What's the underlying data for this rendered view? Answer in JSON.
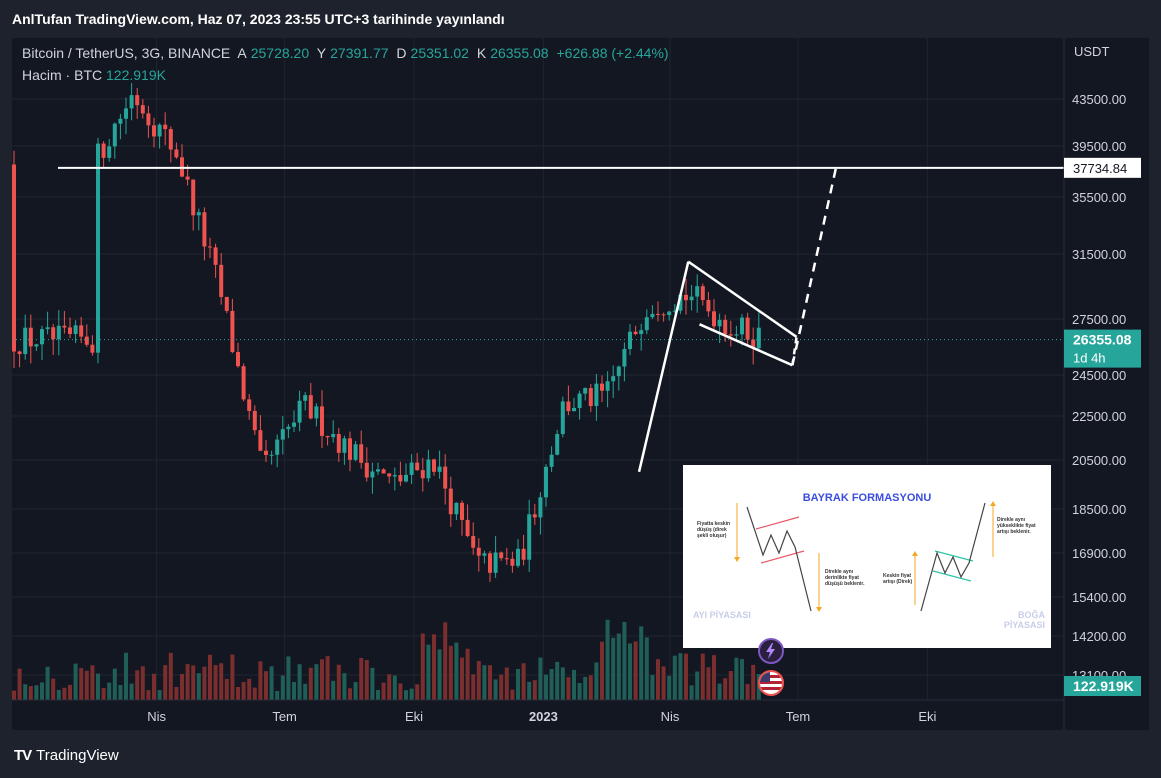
{
  "header": {
    "published": "AnlTufan TradingView.com, Haz 07, 2023 23:55 UTC+3 tarihinde yayınlandı"
  },
  "legend": {
    "title": "Bitcoin / TetherUS, 3G, BINANCE",
    "open_label": "A",
    "open": "25728.20",
    "high_label": "Y",
    "high": "27391.77",
    "low_label": "D",
    "low": "25351.02",
    "close_label": "K",
    "close": "26355.08",
    "change": "+626.88 (+2.44%)",
    "volume_label": "Hacim · BTC",
    "volume": "122.919K"
  },
  "price_axis": {
    "currency": "USDT",
    "ticks": [
      "43500.00",
      "39500.00",
      "35500.00",
      "31500.00",
      "27500.00",
      "24500.00",
      "22500.00",
      "20500.00",
      "18500.00",
      "16900.00",
      "15400.00",
      "14200.00",
      "13100.00"
    ],
    "level_label": "37734.84",
    "last_price_label": "26355.08",
    "countdown_label": "1d 4h",
    "volume_label": "122.919K"
  },
  "time_axis": {
    "ticks": [
      "Nis",
      "Tem",
      "Eki",
      "2023",
      "Nis",
      "Tem",
      "Eki"
    ]
  },
  "inset": {
    "title": "BAYRAK FORMASYONU",
    "bear_note1": "Fiyatta keskin düşüş (direk şekli oluşur)",
    "bear_note2": "Direkle aynı derinlikte fiyat düşüşü beklenir.",
    "bear_market": "AYI PİYASASI",
    "bull_note1": "Keskin fiyat artışı (Direk)",
    "bull_note2": "Direkle aynı yükseklikte fiyat artışı beklenir.",
    "bull_market": "BOĞA PİYASASI"
  },
  "footer": {
    "logo": "TV",
    "brand": "TradingView"
  },
  "colors": {
    "up": "#26a69a",
    "down": "#ef5350",
    "background": "#131722",
    "panel": "#1e222d",
    "level_line": "#ffffff",
    "accent_blue": "#3a4de0"
  },
  "chart_data": {
    "type": "candlestick",
    "symbol": "Bitcoin / TetherUS",
    "interval": "3G",
    "exchange": "BINANCE",
    "y_scale": "log",
    "ylim": [
      12500,
      48000
    ],
    "x_ticks": [
      "Nis",
      "Tem",
      "Eki",
      "2023",
      "Nis",
      "Tem",
      "Eki"
    ],
    "y_ticks": [
      43500,
      39500,
      35500,
      31500,
      27500,
      24500,
      22500,
      20500,
      18500,
      16900,
      15400,
      14200,
      13100
    ],
    "horizontal_level": 37734.84,
    "last_price": 26355.08,
    "series_close_approx": [
      {
        "date": "2022-02",
        "close": 38000
      },
      {
        "date": "2022-03",
        "close": 44000
      },
      {
        "date": "2022-04",
        "close": 39000
      },
      {
        "date": "2022-05",
        "close": 29500
      },
      {
        "date": "2022-06",
        "close": 20000
      },
      {
        "date": "2022-07",
        "close": 23000
      },
      {
        "date": "2022-08",
        "close": 21000
      },
      {
        "date": "2022-09",
        "close": 19500
      },
      {
        "date": "2022-10",
        "close": 20500
      },
      {
        "date": "2022-11",
        "close": 16500
      },
      {
        "date": "2022-12",
        "close": 16600
      },
      {
        "date": "2023-01",
        "close": 23000
      },
      {
        "date": "2023-02",
        "close": 23500
      },
      {
        "date": "2023-03",
        "close": 28300
      },
      {
        "date": "2023-04",
        "close": 29000
      },
      {
        "date": "2023-05",
        "close": 27000
      },
      {
        "date": "2023-06",
        "close": 26355
      }
    ],
    "annotations": {
      "flag_pole": {
        "from": {
          "date": "2023-03-10",
          "price": 20000
        },
        "to": {
          "date": "2023-04-14",
          "price": 31000
        }
      },
      "flag_upper": {
        "from": {
          "date": "2023-04-14",
          "price": 31000
        },
        "to": {
          "date": "2023-06-30",
          "price": 26500
        }
      },
      "flag_lower": {
        "from": {
          "date": "2023-04-22",
          "price": 27200
        },
        "to": {
          "date": "2023-06-27",
          "price": 25000
        }
      },
      "projection": {
        "from": {
          "date": "2023-06-27",
          "price": 25000
        },
        "to": {
          "date": "2023-07-28",
          "price": 37734.84
        }
      }
    }
  }
}
